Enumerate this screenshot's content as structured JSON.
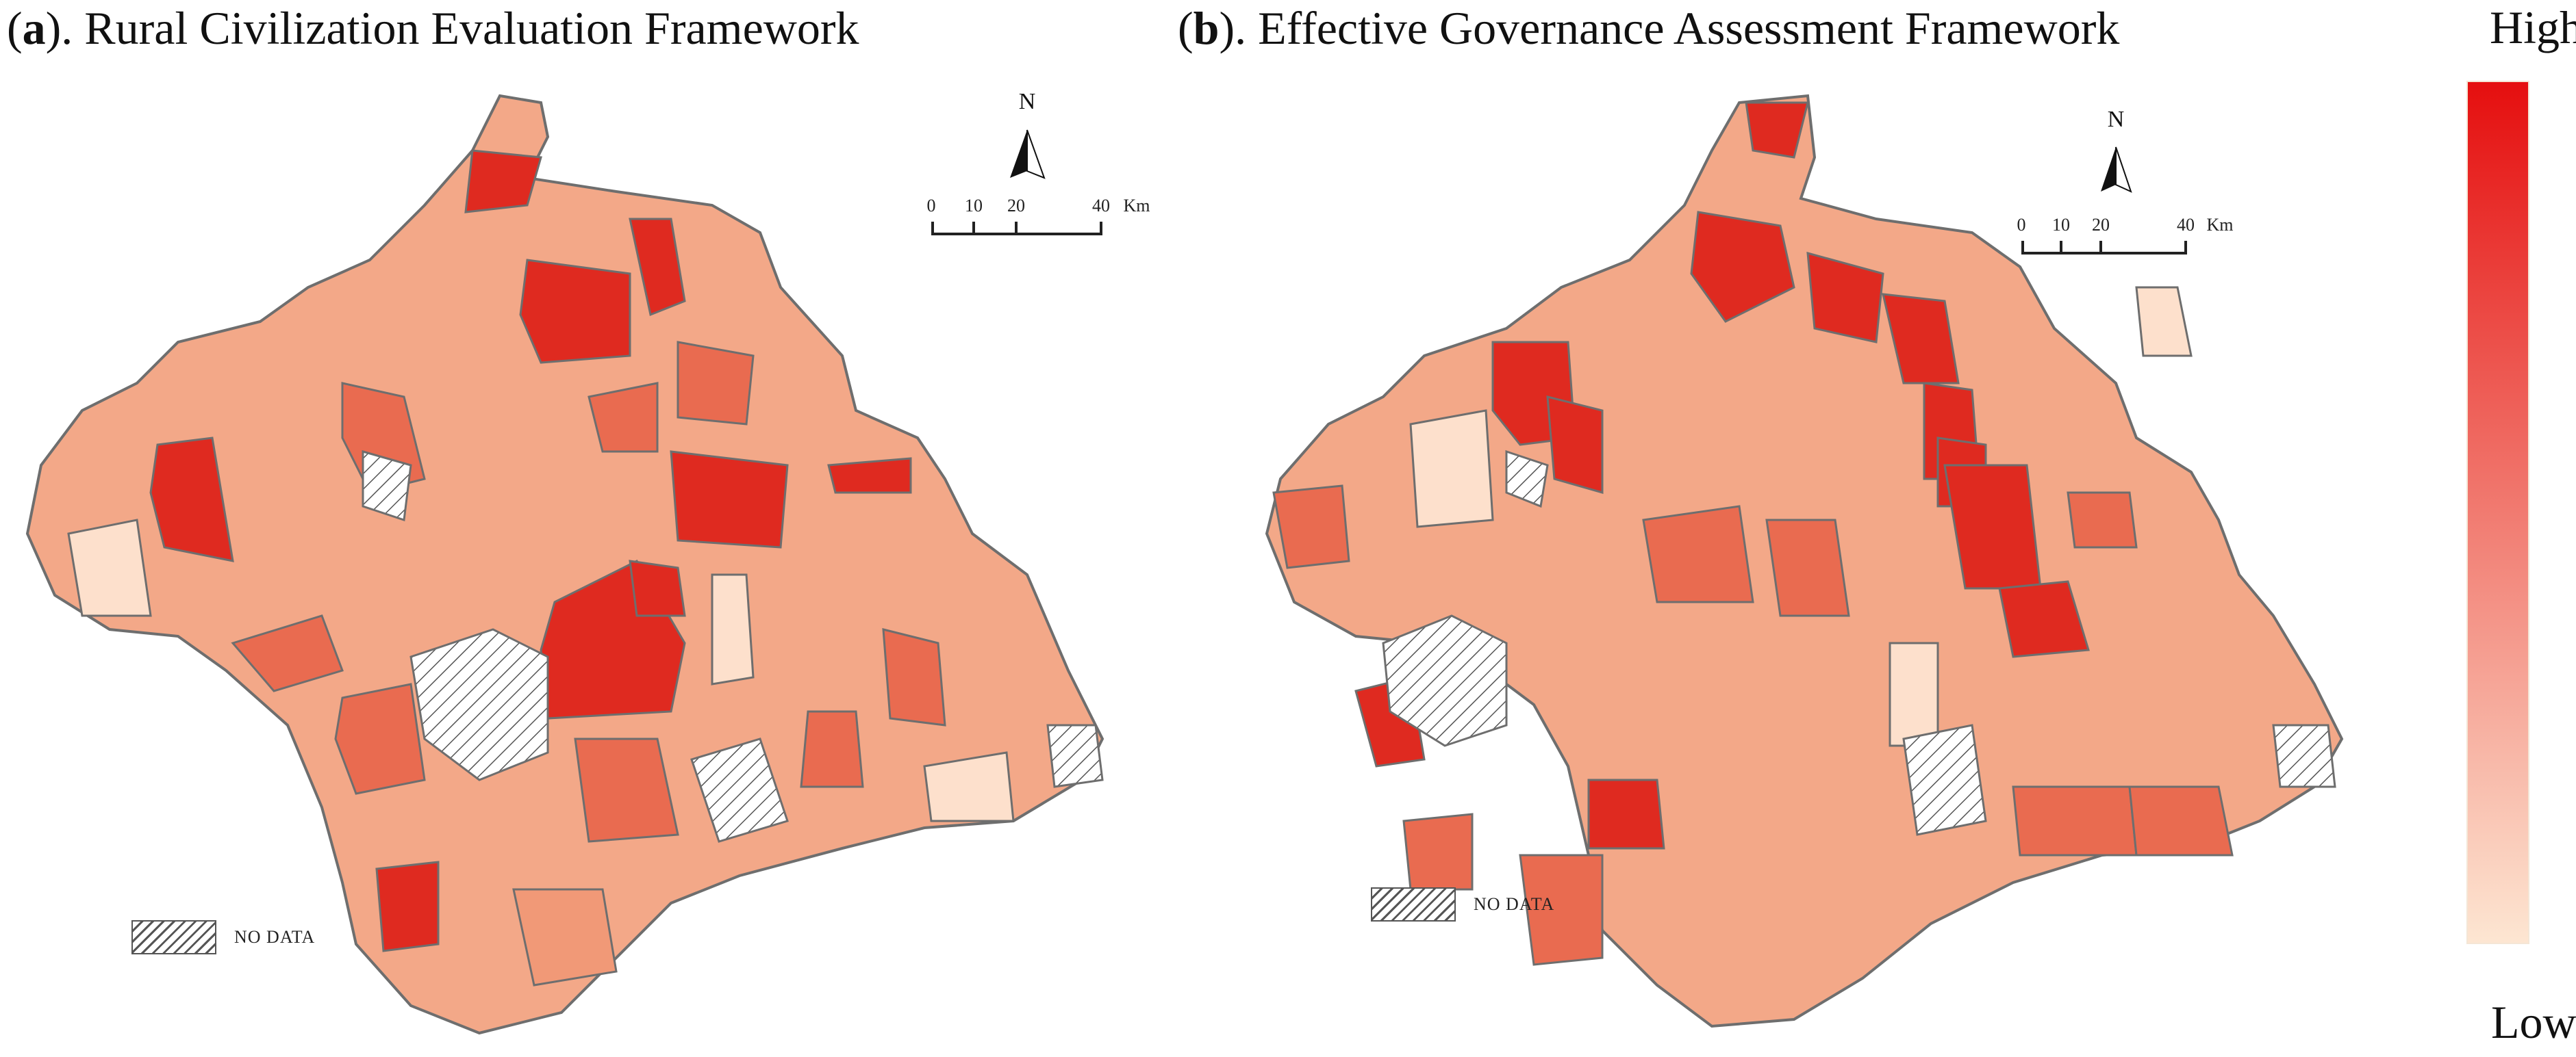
{
  "panel_a": {
    "letter": "a",
    "title": "). Rural Civilization Evaluation Framework",
    "nodata_label": "NO DATA",
    "north_label": "N",
    "scale": {
      "labels": [
        "0",
        "10",
        "20",
        "40"
      ],
      "unit": "Km"
    }
  },
  "panel_b": {
    "letter": "b",
    "title": "). Effective Governance Assessment Framework",
    "nodata_label": "NO DATA",
    "north_label": "N",
    "scale": {
      "labels": [
        "0",
        "10",
        "20",
        "40"
      ],
      "unit": "Km"
    }
  },
  "legend": {
    "high_label": "High",
    "low_label": "Low",
    "color_high": "#e50f0f",
    "color_low": "#fde6d2"
  },
  "colors": {
    "border": "#6e6e6e",
    "nodata_hatch": "#555555",
    "levels": [
      "#fde0cc",
      "#f8bd9f",
      "#f19977",
      "#e96b50",
      "#df2a20"
    ]
  }
}
